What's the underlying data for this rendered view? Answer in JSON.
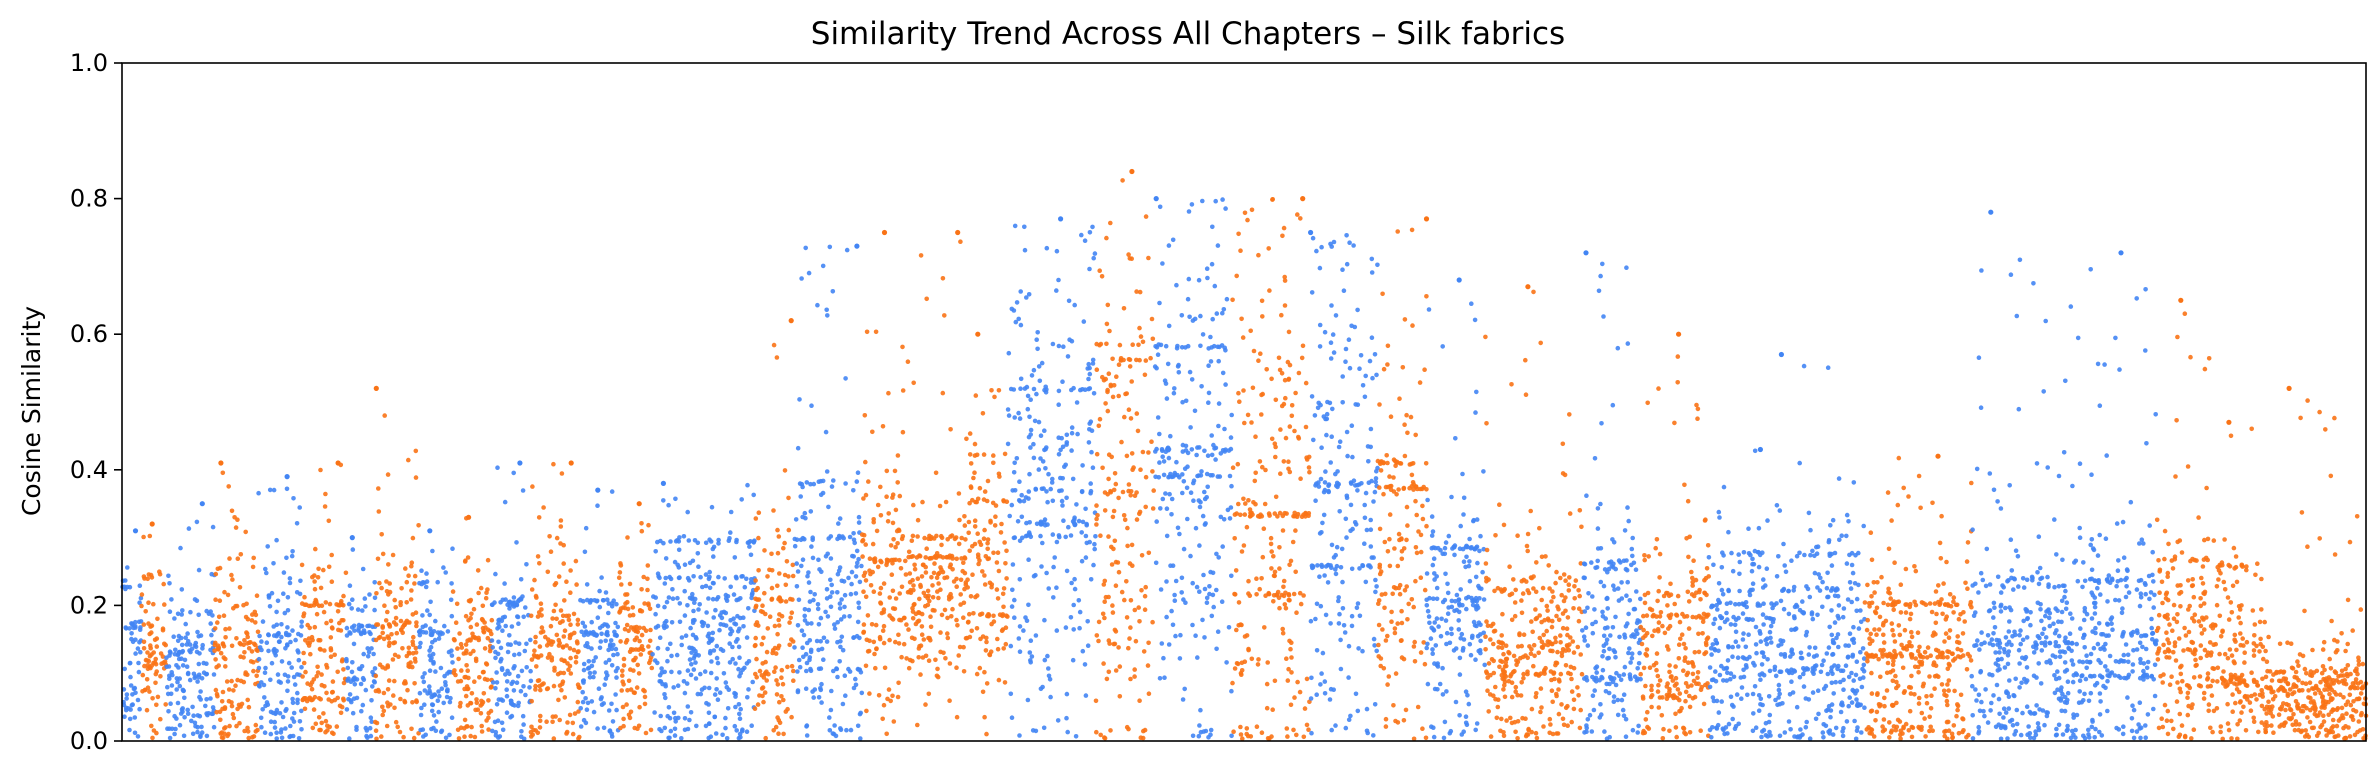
{
  "chart_data": {
    "type": "scatter",
    "title": "Similarity Trend Across All Chapters – Silk fabrics",
    "xlabel": "",
    "ylabel": "Cosine Similarity",
    "ylim": [
      0,
      1.0
    ],
    "y_ticks": [
      {
        "value": 0.0,
        "label": "0.0"
      },
      {
        "value": 0.2,
        "label": "0.2"
      },
      {
        "value": 0.4,
        "label": "0.4"
      },
      {
        "value": 0.6,
        "label": "0.6"
      },
      {
        "value": 0.8,
        "label": "0.8"
      },
      {
        "value": 1.0,
        "label": "1.0"
      }
    ],
    "x_ticks_visible": false,
    "grid": false,
    "legend": "none",
    "colors": [
      "#4285f4",
      "#f97316"
    ],
    "segments": [
      {
        "x": [
          0,
          20
        ],
        "color": 0,
        "base": 0.1,
        "spread": 0.07,
        "max": 0.31
      },
      {
        "x": [
          20,
          45
        ],
        "color": 1,
        "base": 0.11,
        "spread": 0.07,
        "max": 0.32
      },
      {
        "x": [
          45,
          95
        ],
        "color": 0,
        "base": 0.09,
        "spread": 0.06,
        "max": 0.35
      },
      {
        "x": [
          95,
          140
        ],
        "color": 1,
        "base": 0.12,
        "spread": 0.08,
        "max": 0.41
      },
      {
        "x": [
          140,
          185
        ],
        "color": 0,
        "base": 0.11,
        "spread": 0.08,
        "max": 0.39
      },
      {
        "x": [
          185,
          230
        ],
        "color": 1,
        "base": 0.13,
        "spread": 0.08,
        "max": 0.41
      },
      {
        "x": [
          230,
          260
        ],
        "color": 0,
        "base": 0.11,
        "spread": 0.07,
        "max": 0.3
      },
      {
        "x": [
          260,
          305
        ],
        "color": 1,
        "base": 0.13,
        "spread": 0.08,
        "max": 0.52
      },
      {
        "x": [
          305,
          340
        ],
        "color": 0,
        "base": 0.1,
        "spread": 0.07,
        "max": 0.31
      },
      {
        "x": [
          340,
          380
        ],
        "color": 1,
        "base": 0.12,
        "spread": 0.08,
        "max": 0.33
      },
      {
        "x": [
          380,
          420
        ],
        "color": 0,
        "base": 0.11,
        "spread": 0.07,
        "max": 0.41
      },
      {
        "x": [
          420,
          470
        ],
        "color": 1,
        "base": 0.13,
        "spread": 0.08,
        "max": 0.41
      },
      {
        "x": [
          470,
          510
        ],
        "color": 0,
        "base": 0.12,
        "spread": 0.07,
        "max": 0.37
      },
      {
        "x": [
          510,
          545
        ],
        "color": 1,
        "base": 0.13,
        "spread": 0.07,
        "max": 0.35
      },
      {
        "x": [
          545,
          650
        ],
        "color": 0,
        "base": 0.13,
        "spread": 0.08,
        "max": 0.38
      },
      {
        "x": [
          650,
          690
        ],
        "color": 1,
        "base": 0.15,
        "spread": 0.08,
        "max": 0.62
      },
      {
        "x": [
          690,
          760
        ],
        "color": 0,
        "base": 0.18,
        "spread": 0.1,
        "max": 0.73
      },
      {
        "x": [
          760,
          800
        ],
        "color": 1,
        "base": 0.22,
        "spread": 0.1,
        "max": 0.75
      },
      {
        "x": [
          800,
          870
        ],
        "color": 1,
        "base": 0.2,
        "spread": 0.06,
        "max": 0.75
      },
      {
        "x": [
          870,
          910
        ],
        "color": 1,
        "base": 0.25,
        "spread": 0.1,
        "max": 0.6
      },
      {
        "x": [
          910,
          1000
        ],
        "color": 0,
        "base": 0.35,
        "spread": 0.18,
        "max": 0.77
      },
      {
        "x": [
          1000,
          1060
        ],
        "color": 1,
        "base": 0.3,
        "spread": 0.2,
        "max": 0.84
      },
      {
        "x": [
          1060,
          1140
        ],
        "color": 0,
        "base": 0.38,
        "spread": 0.2,
        "max": 0.8
      },
      {
        "x": [
          1140,
          1220
        ],
        "color": 1,
        "base": 0.3,
        "spread": 0.2,
        "max": 0.8
      },
      {
        "x": [
          1220,
          1290
        ],
        "color": 0,
        "base": 0.35,
        "spread": 0.2,
        "max": 0.75
      },
      {
        "x": [
          1290,
          1340
        ],
        "color": 1,
        "base": 0.25,
        "spread": 0.15,
        "max": 0.77
      },
      {
        "x": [
          1340,
          1400
        ],
        "color": 0,
        "base": 0.15,
        "spread": 0.1,
        "max": 0.68
      },
      {
        "x": [
          1400,
          1500
        ],
        "color": 1,
        "base": 0.13,
        "spread": 0.08,
        "max": 0.67
      },
      {
        "x": [
          1500,
          1560
        ],
        "color": 0,
        "base": 0.14,
        "spread": 0.09,
        "max": 0.72
      },
      {
        "x": [
          1560,
          1630
        ],
        "color": 1,
        "base": 0.13,
        "spread": 0.08,
        "max": 0.6
      },
      {
        "x": [
          1630,
          1700
        ],
        "color": 0,
        "base": 0.12,
        "spread": 0.08,
        "max": 0.43
      },
      {
        "x": [
          1700,
          1790
        ],
        "color": 0,
        "base": 0.13,
        "spread": 0.09,
        "max": 0.57
      },
      {
        "x": [
          1790,
          1900
        ],
        "color": 1,
        "base": 0.1,
        "spread": 0.08,
        "max": 0.42
      },
      {
        "x": [
          1900,
          2000
        ],
        "color": 0,
        "base": 0.11,
        "spread": 0.08,
        "max": 0.78
      },
      {
        "x": [
          2000,
          2090
        ],
        "color": 0,
        "base": 0.14,
        "spread": 0.1,
        "max": 0.72
      },
      {
        "x": [
          2090,
          2150
        ],
        "color": 1,
        "base": 0.15,
        "spread": 0.08,
        "max": 0.65
      },
      {
        "x": [
          2150,
          2200
        ],
        "color": 1,
        "base": 0.12,
        "spread": 0.07,
        "max": 0.47
      },
      {
        "x": [
          2200,
          2305
        ],
        "color": 1,
        "base": 0.06,
        "spread": 0.04,
        "max": 0.52
      }
    ]
  }
}
